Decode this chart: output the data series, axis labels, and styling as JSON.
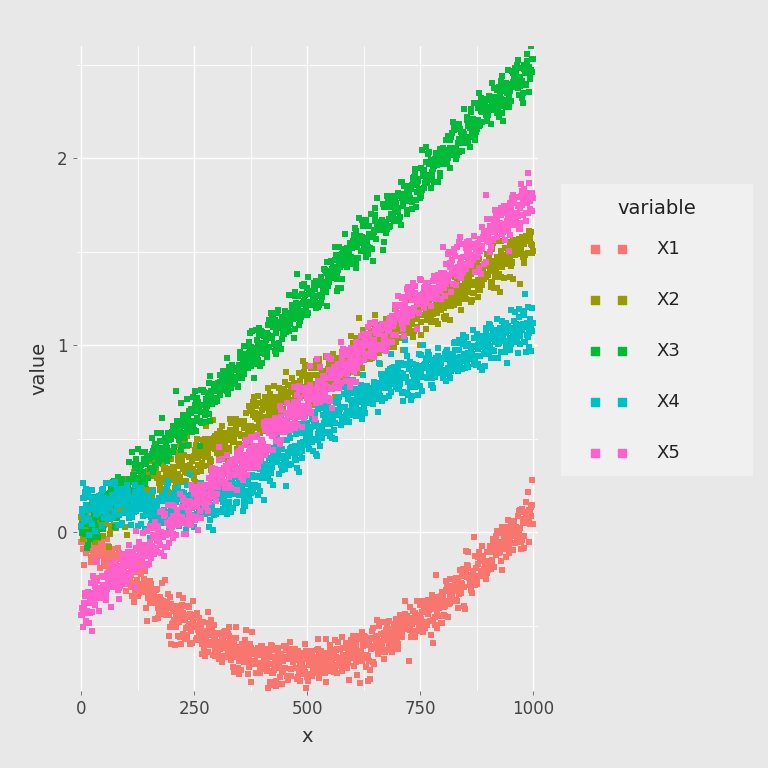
{
  "title": "",
  "xlabel": "x",
  "ylabel": "value",
  "legend_title": "variable",
  "variables": [
    "X1",
    "X2",
    "X3",
    "X4",
    "X5"
  ],
  "colors": {
    "X1": "#F8766D",
    "X2": "#999900",
    "X3": "#00BA38",
    "X4": "#00BFC4",
    "X5": "#FF61CC"
  },
  "n_points": 1000,
  "background_color": "#E8E8E8",
  "panel_background": "#E8E8E8",
  "grid_color": "#FFFFFF",
  "seed": 42,
  "xlim": [
    -10,
    1010
  ],
  "ylim": [
    -0.85,
    2.6
  ],
  "xticks": [
    0,
    250,
    500,
    750,
    1000
  ],
  "yticks": [
    0.0,
    1.0,
    2.0
  ],
  "figsize": [
    7.68,
    7.68
  ],
  "dpi": 100
}
